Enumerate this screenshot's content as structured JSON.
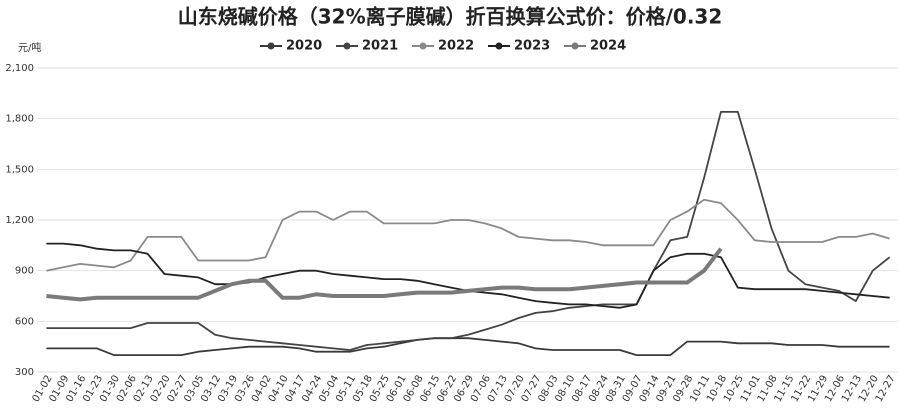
{
  "chart_data": {
    "type": "line",
    "title": "山东烧碱价格（32%离子膜碱）折百换算公式价：价格/0.32",
    "y_unit": "元/吨",
    "categories": [
      "01-02",
      "01-09",
      "01-16",
      "01-23",
      "01-30",
      "02-06",
      "02-13",
      "02-20",
      "02-27",
      "03-05",
      "03-12",
      "03-19",
      "03-26",
      "04-02",
      "04-10",
      "04-17",
      "04-24",
      "05-04",
      "05-11",
      "05-18",
      "05-25",
      "06-01",
      "06-08",
      "06-15",
      "06-22",
      "06-29",
      "07-06",
      "07-13",
      "07-20",
      "07-27",
      "08-03",
      "08-10",
      "08-17",
      "08-24",
      "08-31",
      "09-07",
      "09-14",
      "09-21",
      "09-28",
      "10-11",
      "10-18",
      "10-25",
      "11-01",
      "11-08",
      "11-15",
      "11-22",
      "11-29",
      "12-06",
      "12-13",
      "12-20",
      "12-27"
    ],
    "series": [
      {
        "name": "2020",
        "color": "#3a3a3a",
        "values": [
          440,
          440,
          440,
          440,
          400,
          400,
          400,
          400,
          400,
          420,
          430,
          440,
          450,
          450,
          450,
          440,
          420,
          420,
          420,
          440,
          450,
          470,
          490,
          500,
          500,
          500,
          490,
          480,
          470,
          440,
          430,
          430,
          430,
          430,
          430,
          400,
          400,
          400,
          480,
          480,
          480,
          470,
          470,
          470,
          460,
          460,
          460,
          450,
          450,
          450,
          450
        ]
      },
      {
        "name": "2021",
        "color": "#444444",
        "values": [
          560,
          560,
          560,
          560,
          560,
          560,
          590,
          590,
          590,
          590,
          520,
          500,
          490,
          480,
          470,
          460,
          450,
          440,
          430,
          460,
          470,
          480,
          490,
          500,
          500,
          520,
          550,
          580,
          620,
          650,
          660,
          680,
          690,
          700,
          700,
          700,
          900,
          1080,
          1100,
          1450,
          1840,
          1840,
          1500,
          1150,
          900,
          820,
          800,
          780,
          720,
          900,
          980
        ]
      },
      {
        "name": "2022",
        "color": "#8a8a8a",
        "values": [
          900,
          920,
          940,
          930,
          920,
          960,
          1100,
          1100,
          1100,
          960,
          960,
          960,
          960,
          980,
          1200,
          1250,
          1250,
          1200,
          1250,
          1250,
          1180,
          1180,
          1180,
          1180,
          1200,
          1200,
          1180,
          1150,
          1100,
          1090,
          1080,
          1080,
          1070,
          1050,
          1050,
          1050,
          1050,
          1200,
          1250,
          1320,
          1300,
          1200,
          1080,
          1070,
          1070,
          1070,
          1070,
          1100,
          1100,
          1120,
          1090
        ]
      },
      {
        "name": "2023",
        "color": "#222222",
        "values": [
          1060,
          1060,
          1050,
          1030,
          1020,
          1020,
          1000,
          880,
          870,
          860,
          820,
          820,
          830,
          860,
          880,
          900,
          900,
          880,
          870,
          860,
          850,
          850,
          840,
          820,
          800,
          780,
          770,
          760,
          740,
          720,
          710,
          700,
          700,
          690,
          680,
          700,
          900,
          980,
          1000,
          1000,
          980,
          800,
          790,
          790,
          790,
          790,
          780,
          770,
          760,
          750,
          740
        ]
      },
      {
        "name": "2024",
        "color": "#7a7a7a",
        "values": [
          750,
          740,
          730,
          740,
          740,
          740,
          740,
          740,
          740,
          740,
          780,
          820,
          840,
          840,
          740,
          740,
          760,
          750,
          750,
          750,
          750,
          760,
          770,
          770,
          770,
          780,
          790,
          800,
          800,
          790,
          790,
          790,
          800,
          810,
          820,
          830,
          830,
          830,
          830,
          900,
          1030,
          null,
          null,
          null,
          null,
          null,
          null,
          null,
          null,
          null,
          null
        ]
      }
    ],
    "ylim": [
      300,
      2100
    ],
    "yticks": [
      300,
      600,
      900,
      {
        "value": 1200,
        "label": "1,200"
      },
      {
        "value": 1500,
        "label": "1,500"
      },
      {
        "value": 1800,
        "label": "1,800"
      },
      {
        "value": 2100,
        "label": "2,100"
      }
    ],
    "grid": true,
    "legend": "top"
  }
}
